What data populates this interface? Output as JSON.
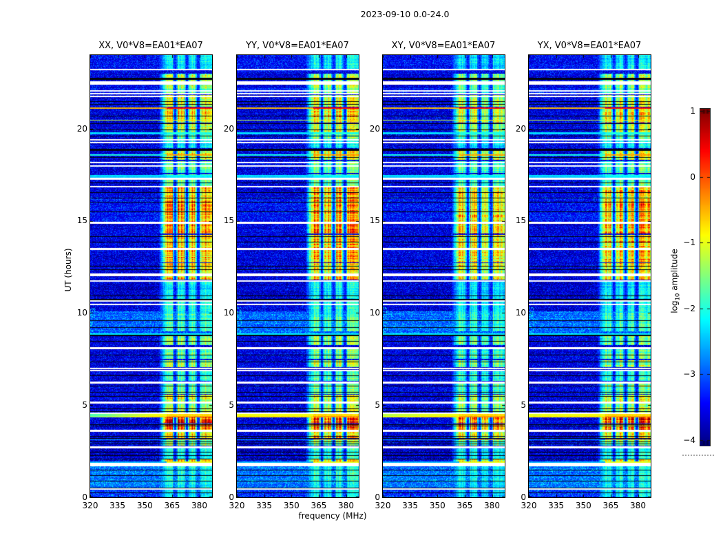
{
  "figure_title": "2023-09-10 0.0-24.0",
  "chart_data": {
    "type": "heatmap",
    "title": "2023-09-10 0.0-24.0",
    "xlabel": "frequency (MHz)",
    "ylabel": "UT (hours)",
    "xlim": [
      320,
      387
    ],
    "ylim": [
      0,
      24
    ],
    "clim": [
      -4,
      1
    ],
    "xticks": [
      320,
      335,
      350,
      365,
      380
    ],
    "yticks": [
      0,
      5,
      10,
      15,
      20
    ],
    "colormap": "jet",
    "panels": [
      {
        "pol": "XX",
        "title": "XX, V0*V8=EA01*EA07",
        "seed": 101,
        "band_gain": 1.0,
        "stripe_gain": 0.45
      },
      {
        "pol": "YY",
        "title": "YY, V0*V8=EA01*EA07",
        "seed": 202,
        "band_gain": 1.05,
        "stripe_gain": 1.0
      },
      {
        "pol": "XY",
        "title": "XY, V0*V8=EA01*EA07",
        "seed": 303,
        "band_gain": 0.92,
        "stripe_gain": 0.8
      },
      {
        "pol": "YX",
        "title": "YX, V0*V8=EA01*EA07",
        "seed": 404,
        "band_gain": 0.98,
        "stripe_gain": 0.95
      }
    ],
    "colorbar": {
      "ticks": [
        1,
        0,
        -1,
        -2,
        -3,
        -4
      ],
      "label_parts": {
        "pre": "log",
        "sub": "10",
        "post": " amplitude"
      }
    },
    "background_value": -3.75,
    "bg_segments": [
      [
        8.9,
        10.1,
        -3.1
      ],
      [
        0.5,
        1.78,
        -3.0
      ],
      [
        0.0,
        0.45,
        -3.3
      ],
      [
        14.95,
        16.35,
        -3.55
      ],
      [
        10.75,
        11.7,
        -3.85
      ],
      [
        2.1,
        2.7,
        -3.85
      ],
      [
        21.9,
        22.2,
        -3.5
      ],
      [
        23.05,
        24.0,
        -3.6
      ]
    ],
    "rfi_band": {
      "f_start": 358,
      "f_full": 362,
      "f_end": 387,
      "gaps": [
        366.8,
        373.2,
        379.3
      ],
      "gap_width": 1.4,
      "segments": [
        [
          23.2,
          24.0,
          0.35
        ],
        [
          22.2,
          23.0,
          0.6
        ],
        [
          21.9,
          22.2,
          0.5
        ],
        [
          21.2,
          21.85,
          0.65
        ],
        [
          20.35,
          21.1,
          0.75
        ],
        [
          19.7,
          20.3,
          0.65
        ],
        [
          19.45,
          19.7,
          0.5
        ],
        [
          18.95,
          19.35,
          0.35
        ],
        [
          18.3,
          18.9,
          0.7
        ],
        [
          17.6,
          18.25,
          0.5
        ],
        [
          16.9,
          17.55,
          0.5
        ],
        [
          16.0,
          16.85,
          0.8
        ],
        [
          14.95,
          16.0,
          0.85
        ],
        [
          14.3,
          14.95,
          0.88
        ],
        [
          13.55,
          14.25,
          0.8
        ],
        [
          12.75,
          13.45,
          0.82
        ],
        [
          12.15,
          12.7,
          0.75
        ],
        [
          11.8,
          12.05,
          0.8
        ],
        [
          10.75,
          11.7,
          0.35
        ],
        [
          10.0,
          10.7,
          0.4
        ],
        [
          9.0,
          10.0,
          0.45
        ],
        [
          8.25,
          8.9,
          0.55
        ],
        [
          7.5,
          8.1,
          0.5
        ],
        [
          7.05,
          7.45,
          0.6
        ],
        [
          6.3,
          6.85,
          0.45
        ],
        [
          5.6,
          6.2,
          0.5
        ],
        [
          5.2,
          5.58,
          0.65
        ],
        [
          4.6,
          5.1,
          0.6
        ],
        [
          4.05,
          4.55,
          1.05
        ],
        [
          3.65,
          4.0,
          0.92
        ],
        [
          3.2,
          3.6,
          0.75
        ],
        [
          2.8,
          3.15,
          0.55
        ],
        [
          2.1,
          2.7,
          0.4
        ],
        [
          1.85,
          2.05,
          0.75
        ],
        [
          0.9,
          1.8,
          0.4
        ],
        [
          0.0,
          0.85,
          0.35
        ]
      ]
    },
    "bright_lines": [
      {
        "t": 21.15,
        "h": 2,
        "v_out": -0.55,
        "v_in": 0.3,
        "stripe": false
      },
      {
        "t": 20.5,
        "h": 1,
        "v_out": -1.2,
        "v_in": -0.8,
        "stripe": false
      },
      {
        "t": 19.8,
        "h": 3,
        "v_out": -2.3,
        "v_in": -2.0,
        "stripe": false
      },
      {
        "t": 18.6,
        "h": 2,
        "v_out": -2.0,
        "v_in": -0.45,
        "stripe": false
      },
      {
        "t": 17.5,
        "h": 2,
        "v_out": -2.3,
        "v_in": -2.1,
        "stripe": false
      },
      {
        "t": 17.42,
        "h": 2,
        "v_out": -2.4,
        "v_in": -2.2,
        "stripe": false
      },
      {
        "t": 8.9,
        "h": 2,
        "v_out": -2.2,
        "v_in": -2.2,
        "stripe": false
      },
      {
        "t": 4.52,
        "h": 3,
        "v_out": -0.95,
        "v_in": -0.7,
        "stripe": true
      },
      {
        "t": 4.42,
        "h": 2,
        "v_out": -0.75,
        "v_in": -0.4,
        "stripe": true
      },
      {
        "t": 3.15,
        "h": 1,
        "v_out": -2.6,
        "v_in": -0.7,
        "stripe": false
      },
      {
        "t": 1.95,
        "h": 2,
        "v_out": -2.5,
        "v_in": -1.0,
        "stripe": false
      }
    ],
    "white_gaps": [
      [
        23.2,
        2
      ],
      [
        22.5,
        5
      ],
      [
        22.05,
        2
      ],
      [
        21.9,
        2
      ],
      [
        21.75,
        2
      ],
      [
        19.4,
        2
      ],
      [
        19.25,
        2
      ],
      [
        18.15,
        2
      ],
      [
        18.0,
        2
      ],
      [
        17.3,
        3
      ],
      [
        16.85,
        2
      ],
      [
        14.9,
        3
      ],
      [
        13.5,
        3
      ],
      [
        12.08,
        4
      ],
      [
        11.72,
        2
      ],
      [
        10.65,
        2
      ],
      [
        10.48,
        2
      ],
      [
        8.12,
        3
      ],
      [
        7.0,
        2
      ],
      [
        6.88,
        2
      ],
      [
        6.25,
        3
      ],
      [
        5.15,
        3
      ],
      [
        4.55,
        2
      ],
      [
        3.62,
        3
      ],
      [
        2.72,
        3
      ],
      [
        1.78,
        5
      ],
      [
        0.45,
        2
      ]
    ],
    "black_lines": [
      [
        22.78,
        3
      ],
      [
        21.5,
        1
      ],
      [
        21.35,
        1
      ],
      [
        20.72,
        1
      ],
      [
        20.3,
        1
      ],
      [
        19.95,
        1
      ],
      [
        19.62,
        1
      ],
      [
        18.9,
        3
      ],
      [
        18.45,
        1
      ],
      [
        17.08,
        1
      ],
      [
        16.55,
        1
      ],
      [
        16.28,
        1
      ],
      [
        16.05,
        1
      ],
      [
        15.52,
        1
      ],
      [
        14.18,
        1
      ],
      [
        13.88,
        1
      ],
      [
        12.55,
        1
      ],
      [
        12.38,
        1
      ],
      [
        10.95,
        1
      ],
      [
        10.78,
        2
      ],
      [
        9.6,
        1
      ],
      [
        9.22,
        1
      ],
      [
        8.82,
        2
      ],
      [
        8.48,
        1
      ],
      [
        7.72,
        1
      ],
      [
        7.38,
        1
      ],
      [
        6.6,
        1
      ],
      [
        6.05,
        1
      ],
      [
        5.72,
        1
      ],
      [
        5.5,
        1
      ],
      [
        4.82,
        1
      ],
      [
        4.68,
        1
      ],
      [
        3.98,
        1
      ],
      [
        3.88,
        1
      ],
      [
        3.32,
        1
      ],
      [
        3.22,
        1
      ],
      [
        3.02,
        1
      ],
      [
        2.92,
        1
      ],
      [
        2.45,
        1
      ],
      [
        2.28,
        1
      ],
      [
        2.08,
        1
      ],
      [
        1.5,
        1
      ],
      [
        1.18,
        1
      ],
      [
        0.88,
        1
      ],
      [
        0.52,
        1
      ],
      [
        0.28,
        1
      ]
    ],
    "left_edge_speckle": {
      "t0": 8.9,
      "t1": 10.3,
      "f_max": 322.5,
      "density": 0.18,
      "v": -2.4
    }
  }
}
